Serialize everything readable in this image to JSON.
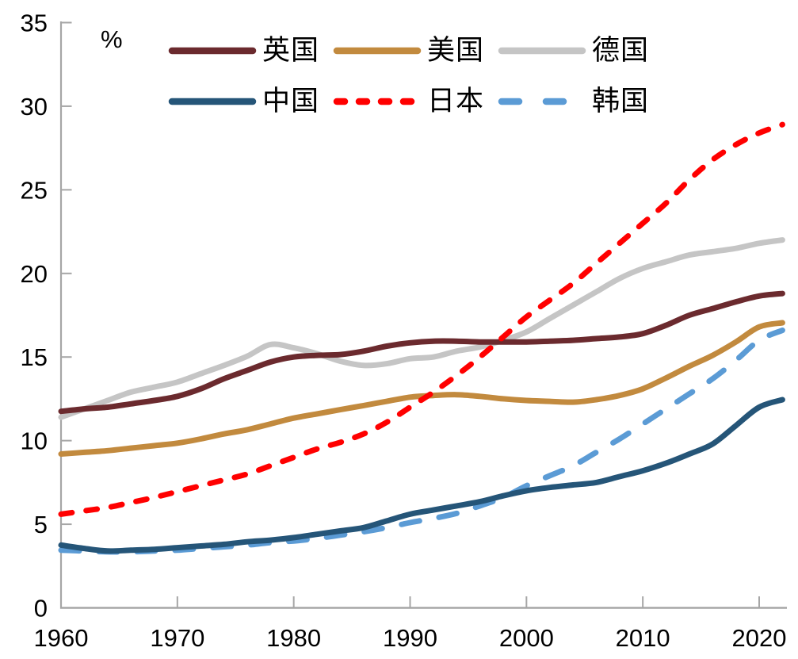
{
  "chart_data": {
    "type": "line",
    "title": "",
    "unit_label": "%",
    "xlabel": "",
    "ylabel": "%",
    "xlim": [
      1960,
      2022.5
    ],
    "ylim": [
      0,
      35
    ],
    "xticks": [
      1960,
      1970,
      1980,
      1990,
      2000,
      2010,
      2020
    ],
    "yticks": [
      0,
      5,
      10,
      15,
      20,
      25,
      30,
      35
    ],
    "grid": false,
    "legend_position": "top-left-inside-two-rows",
    "axis_color": "#A6A6A6",
    "text_color": "#000000",
    "x": [
      1960,
      1962,
      1964,
      1966,
      1968,
      1970,
      1972,
      1974,
      1976,
      1978,
      1980,
      1982,
      1984,
      1986,
      1988,
      1990,
      1992,
      1994,
      1996,
      1998,
      2000,
      2002,
      2004,
      2006,
      2008,
      2010,
      2012,
      2014,
      2016,
      2018,
      2020,
      2022
    ],
    "series": [
      {
        "name": "英国",
        "color": "#6B2A2E",
        "style": "solid",
        "dash": null,
        "legend_dash": null,
        "values": [
          11.75,
          11.9,
          12.0,
          12.2,
          12.4,
          12.65,
          13.1,
          13.7,
          14.2,
          14.7,
          15.0,
          15.1,
          15.15,
          15.35,
          15.65,
          15.85,
          15.95,
          15.95,
          15.9,
          15.9,
          15.9,
          15.95,
          16.0,
          16.1,
          16.2,
          16.4,
          16.9,
          17.5,
          17.9,
          18.3,
          18.65,
          18.8
        ]
      },
      {
        "name": "美国",
        "color": "#C28A3E",
        "style": "solid",
        "dash": null,
        "legend_dash": null,
        "values": [
          9.2,
          9.3,
          9.4,
          9.55,
          9.7,
          9.85,
          10.1,
          10.4,
          10.65,
          11.0,
          11.35,
          11.6,
          11.85,
          12.1,
          12.35,
          12.6,
          12.7,
          12.75,
          12.65,
          12.5,
          12.4,
          12.35,
          12.3,
          12.45,
          12.7,
          13.1,
          13.75,
          14.45,
          15.1,
          15.9,
          16.8,
          17.05
        ]
      },
      {
        "name": "德国",
        "color": "#C5C5C5",
        "style": "solid",
        "dash": null,
        "legend_dash": null,
        "values": [
          11.4,
          11.9,
          12.4,
          12.9,
          13.2,
          13.5,
          14.0,
          14.5,
          15.05,
          15.75,
          15.55,
          15.2,
          14.75,
          14.5,
          14.6,
          14.9,
          15.0,
          15.35,
          15.6,
          16.0,
          16.5,
          17.3,
          18.1,
          18.9,
          19.7,
          20.3,
          20.7,
          21.1,
          21.3,
          21.5,
          21.8,
          22.0
        ]
      },
      {
        "name": "中国",
        "color": "#255578",
        "style": "solid",
        "dash": null,
        "legend_dash": null,
        "values": [
          3.75,
          3.55,
          3.4,
          3.45,
          3.5,
          3.6,
          3.7,
          3.8,
          3.95,
          4.05,
          4.2,
          4.4,
          4.6,
          4.8,
          5.2,
          5.6,
          5.85,
          6.1,
          6.35,
          6.7,
          7.0,
          7.2,
          7.35,
          7.5,
          7.85,
          8.2,
          8.65,
          9.2,
          9.8,
          10.9,
          12.0,
          12.45
        ]
      },
      {
        "name": "日本",
        "color": "#FF0000",
        "style": "dashed",
        "dash": [
          14,
          18
        ],
        "legend_dash": [
          10,
          18
        ],
        "values": [
          5.6,
          5.8,
          6.0,
          6.3,
          6.6,
          6.95,
          7.3,
          7.65,
          8.0,
          8.5,
          9.0,
          9.5,
          9.9,
          10.4,
          11.1,
          12.0,
          12.9,
          13.9,
          15.0,
          16.2,
          17.4,
          18.4,
          19.4,
          20.6,
          21.8,
          23.0,
          24.2,
          25.6,
          26.8,
          27.7,
          28.4,
          28.9
        ]
      },
      {
        "name": "韩国",
        "color": "#5B9BD5",
        "style": "dashed",
        "dash": [
          23,
          25
        ],
        "legend_dash": [
          22,
          34
        ],
        "values": [
          3.45,
          3.4,
          3.35,
          3.35,
          3.4,
          3.45,
          3.55,
          3.65,
          3.75,
          3.9,
          4.0,
          4.15,
          4.35,
          4.55,
          4.8,
          5.1,
          5.35,
          5.65,
          6.1,
          6.6,
          7.3,
          7.9,
          8.5,
          9.3,
          10.1,
          11.0,
          11.9,
          12.8,
          13.7,
          14.8,
          16.0,
          16.6
        ]
      }
    ]
  }
}
